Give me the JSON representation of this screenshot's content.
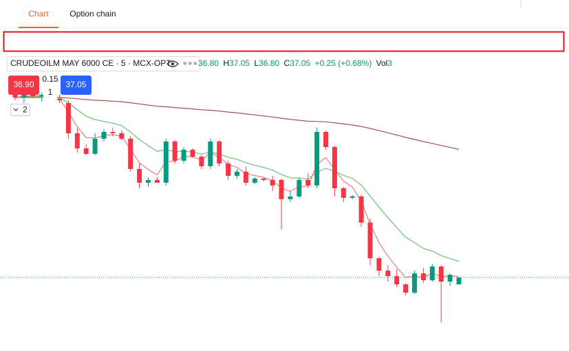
{
  "tabs": [
    "Chart",
    "Option chain"
  ],
  "legend": {
    "symbol": "CRUDEOILM MAY 6000 CE · 5 · MCX-OPT",
    "more": "∘∘∘",
    "items": [
      {
        "value": "36.80"
      },
      {
        "label": "H",
        "value": "37.05"
      },
      {
        "label": "L",
        "value": "36.80"
      },
      {
        "label": "C",
        "value": "37.05"
      }
    ],
    "change": "+0.25 (+0.68%)",
    "volume": {
      "label": "Vol",
      "value": "3"
    }
  },
  "order": {
    "sell": "36.90",
    "spread": "0.15",
    "buy": "37.05",
    "quantity": "1",
    "lots": "2"
  },
  "chart_data": {
    "type": "candlestick",
    "up_color": "#089981",
    "down_color": "#f23645",
    "ylim": [
      34.375,
      44.65
    ],
    "last_price": 37.05,
    "open": [
      43.7,
      43.6,
      43.75,
      43.65,
      43.7,
      43.55,
      43.4,
      42.3,
      41.75,
      41.55,
      42.1,
      42.35,
      42.3,
      42.1,
      41.0,
      40.5,
      40.6,
      40.5,
      42.0,
      41.3,
      41.7,
      41.45,
      41.1,
      42.0,
      41.2,
      40.75,
      40.9,
      40.5,
      40.65,
      40.6,
      40.6,
      39.9,
      40.0,
      40.6,
      40.4,
      42.35,
      41.8,
      40.3,
      39.95,
      40.0,
      39.05,
      37.75,
      37.3,
      37.1,
      36.8,
      36.5,
      37.2,
      36.95,
      37.45,
      36.9,
      36.8
    ],
    "high": [
      43.9,
      43.8,
      43.9,
      43.8,
      43.95,
      43.7,
      43.5,
      42.5,
      41.9,
      42.3,
      42.45,
      42.5,
      42.4,
      42.2,
      41.2,
      40.7,
      40.7,
      42.1,
      42.05,
      41.8,
      41.75,
      41.5,
      42.1,
      42.05,
      41.3,
      41.0,
      41.1,
      40.7,
      40.7,
      40.75,
      40.65,
      40.2,
      40.7,
      40.85,
      42.5,
      42.4,
      41.85,
      40.35,
      40.05,
      40.05,
      39.2,
      37.8,
      37.5,
      37.35,
      36.85,
      37.3,
      37.4,
      37.55,
      37.5,
      37.2,
      37.05
    ],
    "low": [
      43.5,
      43.4,
      43.6,
      43.45,
      43.6,
      43.4,
      42.1,
      41.6,
      41.5,
      41.5,
      42.0,
      42.2,
      42.05,
      40.9,
      40.3,
      40.35,
      40.5,
      40.4,
      41.2,
      41.2,
      41.4,
      41.0,
      41.0,
      41.1,
      40.6,
      40.65,
      40.4,
      40.45,
      40.55,
      40.2,
      38.8,
      39.8,
      39.95,
      40.3,
      40.3,
      41.7,
      40.0,
      39.8,
      39.9,
      38.9,
      37.5,
      37.1,
      36.9,
      36.7,
      36.4,
      36.45,
      36.85,
      36.9,
      35.4,
      36.75,
      36.8
    ],
    "close": [
      43.6,
      43.75,
      43.65,
      43.7,
      43.55,
      43.5,
      42.3,
      41.75,
      41.55,
      42.1,
      42.35,
      42.3,
      42.1,
      41.0,
      40.5,
      40.6,
      40.5,
      42.0,
      41.3,
      41.7,
      41.45,
      41.1,
      42.0,
      41.2,
      40.75,
      40.9,
      40.5,
      40.65,
      40.6,
      40.4,
      39.9,
      40.0,
      40.6,
      40.4,
      42.35,
      41.8,
      40.3,
      39.95,
      40.0,
      39.05,
      37.75,
      37.3,
      37.1,
      36.8,
      36.5,
      37.2,
      36.95,
      37.45,
      36.9,
      37.15,
      37.05
    ]
  }
}
